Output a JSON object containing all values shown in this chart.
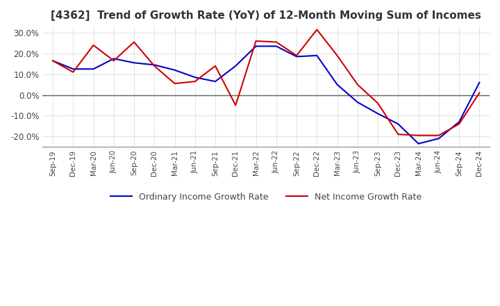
{
  "title": "[4362]  Trend of Growth Rate (YoY) of 12-Month Moving Sum of Incomes",
  "ylim": [
    -25,
    33
  ],
  "yticks": [
    -20,
    -10,
    0,
    10,
    20,
    30
  ],
  "background_color": "#ffffff",
  "legend_labels": [
    "Ordinary Income Growth Rate",
    "Net Income Growth Rate"
  ],
  "legend_colors": [
    "#0000cc",
    "#cc0000"
  ],
  "x_labels": [
    "Sep-19",
    "Dec-19",
    "Mar-20",
    "Jun-20",
    "Sep-20",
    "Dec-20",
    "Mar-21",
    "Jun-21",
    "Sep-21",
    "Dec-21",
    "Mar-22",
    "Jun-22",
    "Sep-22",
    "Dec-22",
    "Mar-23",
    "Jun-23",
    "Sep-23",
    "Dec-23",
    "Mar-24",
    "Jun-24",
    "Sep-24",
    "Dec-24"
  ],
  "ordinary_income": [
    16.5,
    12.5,
    12.5,
    17.5,
    15.5,
    14.5,
    12.0,
    8.5,
    6.5,
    14.0,
    23.5,
    23.5,
    18.5,
    19.0,
    5.0,
    -3.5,
    -9.0,
    -14.0,
    -23.5,
    -21.0,
    -13.0,
    6.0
  ],
  "net_income": [
    16.5,
    11.0,
    24.0,
    16.5,
    25.5,
    14.0,
    5.5,
    6.5,
    14.0,
    -5.0,
    26.0,
    25.5,
    19.0,
    31.5,
    19.0,
    5.0,
    -4.0,
    -19.0,
    -19.5,
    -19.5,
    -14.0,
    1.0
  ]
}
